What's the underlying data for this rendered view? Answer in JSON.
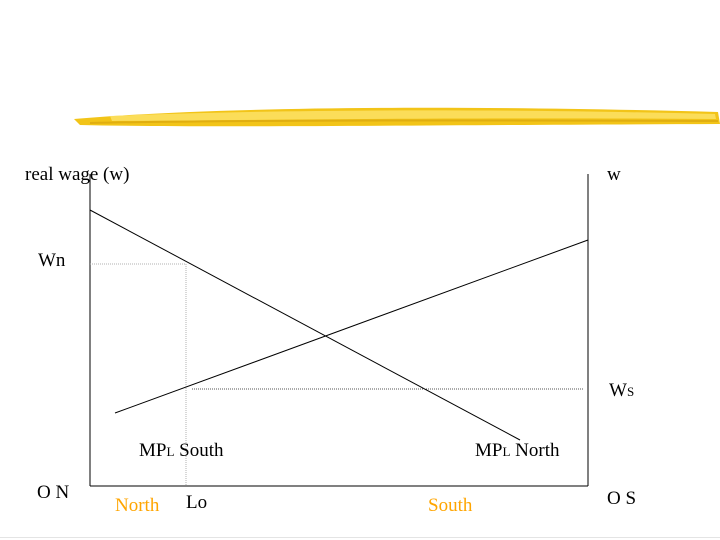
{
  "diagram": {
    "left_axis_label": "real wage (w)",
    "right_axis_label": "w",
    "wage_north": "Wn",
    "wage_south_main": "W",
    "wage_south_sub": "S",
    "origin_north": "O N",
    "origin_south": "O S",
    "region_north": "North",
    "region_south": "South",
    "labor_split": "Lo",
    "mpl_south": {
      "main": "MP",
      "sub": "L",
      "rest": " South"
    },
    "mpl_north": {
      "main": "MP",
      "sub": "L",
      "rest": " North"
    }
  },
  "colors": {
    "brush_stroke": "#F2C418",
    "region_label": "#FFA500",
    "guide_line": "#B0B0B0",
    "axis": "#000000"
  }
}
